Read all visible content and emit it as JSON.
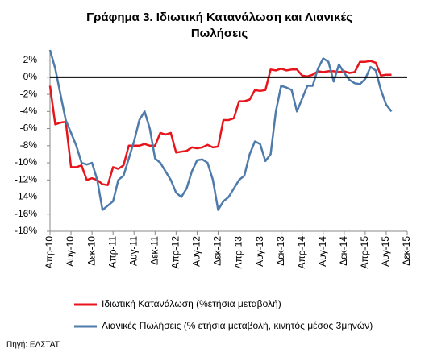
{
  "chart_data": {
    "type": "line",
    "title": [
      "Γράφημα 3. Ιδιωτική Κατανάλωση και Λιανικές",
      "Πωλήσεις"
    ],
    "source": "Πηγή: ΕΛΣΤΑΤ",
    "categories": [
      "Απρ-10",
      null,
      null,
      null,
      "Αυγ-10",
      null,
      null,
      null,
      "Δεκ-10",
      null,
      null,
      null,
      "Απρ-11",
      null,
      null,
      null,
      "Αυγ-11",
      null,
      null,
      null,
      "Δεκ-11",
      null,
      null,
      null,
      "Απρ-12",
      null,
      null,
      null,
      "Αυγ-12",
      null,
      null,
      null,
      "Δεκ-12",
      null,
      null,
      null,
      "Απρ-13",
      null,
      null,
      null,
      "Αυγ-13",
      null,
      null,
      null,
      "Δεκ-13",
      null,
      null,
      null,
      "Απρ-14",
      null,
      null,
      null,
      "Αυγ-14",
      null,
      null,
      null,
      "Δεκ-14",
      null,
      null,
      null,
      "Απρ-15",
      null,
      null,
      null,
      "Αυγ-15",
      null,
      null,
      null,
      "Δεκ-15"
    ],
    "series": [
      {
        "name": "Ιδιωτική Κατανάλωση (%ετήσια μεταβολή)",
        "color": "#e8141b",
        "values": [
          -1,
          -5.5,
          -5.3,
          -5.2,
          -10.5,
          -10.5,
          -10.3,
          -12,
          -11.8,
          -12,
          -12.5,
          -12.6,
          -10.5,
          -10.7,
          -10.3,
          -8,
          -8,
          -8,
          -7.8,
          -8,
          -8,
          -6.5,
          -6.7,
          -6.5,
          -8.8,
          -8.7,
          -8.6,
          -8.2,
          -8.3,
          -8.2,
          -7.9,
          -8.2,
          -8.1,
          -5,
          -5,
          -4.8,
          -2.8,
          -2.8,
          -2.6,
          -1.5,
          -1.6,
          -1.5,
          0.9,
          0.8,
          1,
          0.8,
          0.9,
          0.9,
          0.2,
          0.1,
          0.3,
          0.7,
          0.6,
          0.7,
          0.7,
          0.6,
          0.7,
          0.5,
          0.6,
          1.8,
          1.8,
          1.9,
          1.7,
          0.2,
          0.3,
          0.3,
          null,
          null,
          null
        ]
      },
      {
        "name": "Λιανικές Πωλήσεις (% ετήσια μεταβολή, κινητός μέσος 3μηνών)",
        "color": "#4f7bab",
        "values": [
          3.2,
          1,
          -2,
          -5,
          -6.5,
          -8,
          -10,
          -10.2,
          -10,
          -12,
          -15.5,
          -15,
          -14.5,
          -12,
          -11.5,
          -9.5,
          -7.5,
          -5,
          -4,
          -6,
          -9.5,
          -10,
          -11,
          -12,
          -13.5,
          -14,
          -13,
          -11,
          -9.7,
          -9.6,
          -10,
          -12,
          -15.5,
          -14.5,
          -14,
          -13,
          -12,
          -11.5,
          -9,
          -7.5,
          -7.8,
          -9.8,
          -9,
          -4,
          -1,
          -1.2,
          -1.5,
          -4,
          -2.5,
          -1,
          -1,
          1,
          2.2,
          1.8,
          -0.5,
          1.5,
          0.5,
          -0.3,
          -0.7,
          -0.8,
          -0.2,
          1.2,
          0.8,
          -1.5,
          -3.2,
          -4,
          null,
          null,
          null
        ]
      }
    ],
    "ylim": [
      -18,
      3
    ],
    "yticks": [
      {
        "value": 2,
        "label": "2%"
      },
      {
        "value": 0,
        "label": "0%"
      },
      {
        "value": -2,
        "label": "-2%"
      },
      {
        "value": -4,
        "label": "-4%"
      },
      {
        "value": -6,
        "label": "-6%"
      },
      {
        "value": -8,
        "label": "-8%"
      },
      {
        "value": -10,
        "label": "-10%"
      },
      {
        "value": -12,
        "label": "-12%"
      },
      {
        "value": -14,
        "label": "-14%"
      },
      {
        "value": -16,
        "label": "-16%"
      },
      {
        "value": -18,
        "label": "-18%"
      }
    ],
    "zero_line": true,
    "grid": false
  }
}
